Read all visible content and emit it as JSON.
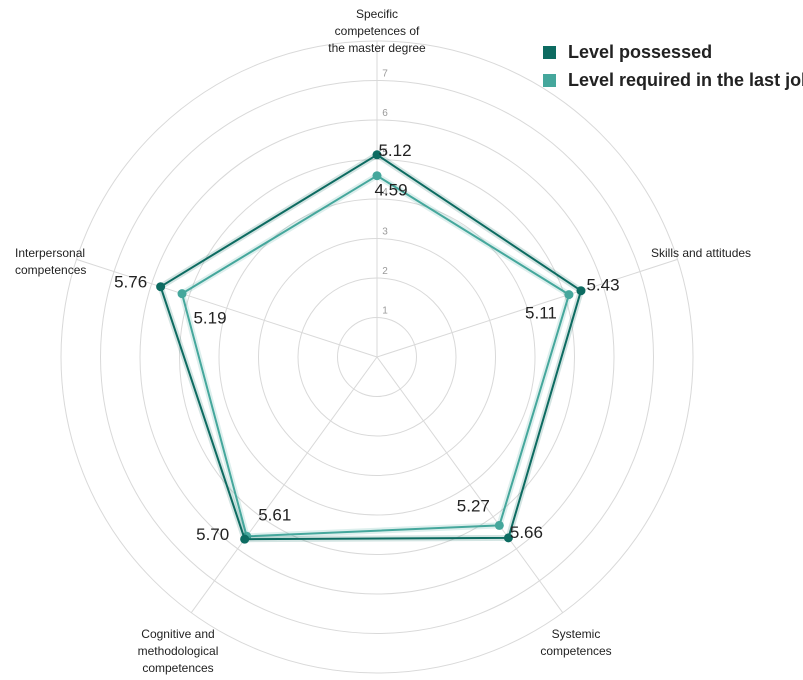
{
  "colors": {
    "possessed": "#0d6b61",
    "required": "#45a79c",
    "grid": "#d9d9d9",
    "tick": "#9a9a9a",
    "text": "#222222"
  },
  "chart_data": {
    "type": "radar",
    "rmax": 8,
    "ticks": [
      "1",
      "2",
      "3",
      "4",
      "5",
      "6",
      "7"
    ],
    "tick_values": [
      1,
      2,
      3,
      4,
      5,
      6,
      7
    ],
    "axes": [
      {
        "label": [
          "Specific",
          "competences of",
          "the master degree"
        ]
      },
      {
        "label": [
          "Skills and attitudes"
        ]
      },
      {
        "label": [
          "Systemic",
          "competences"
        ]
      },
      {
        "label": [
          "Cognitive and",
          "methodological",
          "competences"
        ]
      },
      {
        "label": [
          "Interpersonal",
          "competences"
        ]
      }
    ],
    "series": [
      {
        "name": "Level possessed",
        "values": [
          5.12,
          5.43,
          5.66,
          5.7,
          5.76
        ],
        "labels": [
          "5.12",
          "5.43",
          "5.66",
          "5.70",
          "5.76"
        ]
      },
      {
        "name": "Level required in the last job",
        "values": [
          4.59,
          5.11,
          5.27,
          5.61,
          5.19
        ],
        "labels": [
          "4.59",
          "5.11",
          "5.27",
          "5.61",
          "5.19"
        ]
      }
    ],
    "legend_position": "top-right"
  }
}
